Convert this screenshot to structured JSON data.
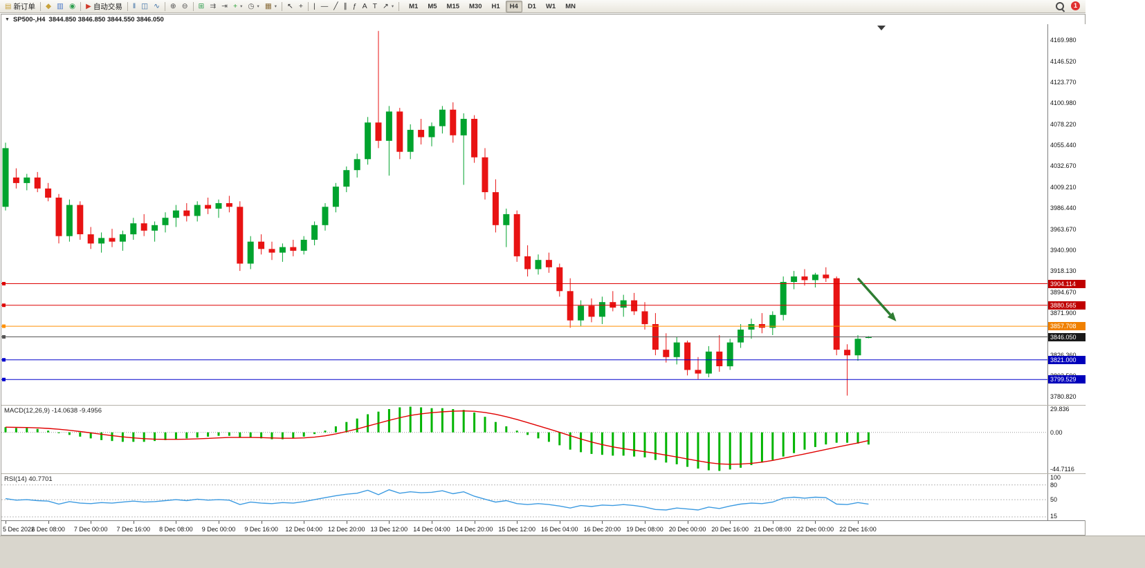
{
  "colors": {
    "up": "#00a32e",
    "down": "#e81313",
    "macd_histogram": "#00b400",
    "macd_signal": "#e00000",
    "rsi_line": "#3b9ae1",
    "background": "#ffffff",
    "axis_text": "#111111",
    "arrow_annotation": "#2e7d32"
  },
  "toolbar": {
    "items": [
      {
        "name": "new-order-button",
        "label": "新订单",
        "glyph": "▤",
        "glyph_color": "#c8a23a"
      },
      {
        "name": "separator"
      },
      {
        "name": "alerts-icon",
        "glyph": "◆",
        "glyph_color": "#c8a23a"
      },
      {
        "name": "market-watch-icon",
        "glyph": "▥",
        "glyph_color": "#4a78c8"
      },
      {
        "name": "community-icon",
        "glyph": "◉",
        "glyph_color": "#2e9e4f"
      },
      {
        "name": "separator"
      },
      {
        "name": "autotrading-button",
        "label": "自动交易",
        "glyph": "▶",
        "glyph_color": "#d03a2a"
      },
      {
        "name": "separator"
      },
      {
        "name": "bar-chart-icon",
        "glyph": "‖",
        "glyph_color": "#3a6ea5"
      },
      {
        "name": "candlestick-chart-icon",
        "glyph": "◫",
        "glyph_color": "#3a6ea5"
      },
      {
        "name": "line-chart-icon",
        "glyph": "∿",
        "glyph_color": "#3a6ea5"
      },
      {
        "name": "separator"
      },
      {
        "name": "zoom-in-icon",
        "glyph": "⊕",
        "glyph_color": "#555555"
      },
      {
        "name": "zoom-out-icon",
        "glyph": "⊖",
        "glyph_color": "#555555"
      },
      {
        "name": "separator"
      },
      {
        "name": "tile-windows-icon",
        "glyph": "⊞",
        "glyph_color": "#2e9e4f"
      },
      {
        "name": "auto-scroll-icon",
        "glyph": "⇉",
        "glyph_color": "#555555"
      },
      {
        "name": "chart-shift-icon",
        "glyph": "⇥",
        "glyph_color": "#555555"
      },
      {
        "name": "indicators-add-icon",
        "glyph": "+",
        "glyph_color": "#1f9e2e",
        "dropdown": true
      },
      {
        "name": "periods-icon",
        "glyph": "◷",
        "glyph_color": "#555555",
        "dropdown": true
      },
      {
        "name": "templates-icon",
        "glyph": "▦",
        "glyph_color": "#8a6d3b",
        "dropdown": true
      },
      {
        "name": "separator"
      },
      {
        "name": "cursor-icon",
        "glyph": "↖",
        "glyph_color": "#333333"
      },
      {
        "name": "crosshair-icon",
        "glyph": "+",
        "glyph_color": "#333333"
      },
      {
        "name": "separator"
      },
      {
        "name": "vertical-line-icon",
        "glyph": "|",
        "glyph_color": "#333333"
      },
      {
        "name": "horizontal-line-icon",
        "glyph": "—",
        "glyph_color": "#333333"
      },
      {
        "name": "trendline-icon",
        "glyph": "╱",
        "glyph_color": "#333333"
      },
      {
        "name": "channel-icon",
        "glyph": "∥",
        "glyph_color": "#333333"
      },
      {
        "name": "fibonacci-icon",
        "glyph": "ƒ",
        "glyph_color": "#333333"
      },
      {
        "name": "text-icon",
        "glyph": "A",
        "glyph_color": "#333333"
      },
      {
        "name": "text-label-icon",
        "glyph": "T",
        "glyph_color": "#333333"
      },
      {
        "name": "arrows-tool-icon",
        "glyph": "↗",
        "glyph_color": "#333333",
        "dropdown": true
      },
      {
        "name": "separator"
      }
    ],
    "timeframes": [
      {
        "label": "M1"
      },
      {
        "label": "M5"
      },
      {
        "label": "M15"
      },
      {
        "label": "M30"
      },
      {
        "label": "H1"
      },
      {
        "label": "H4",
        "active": true
      },
      {
        "label": "D1"
      },
      {
        "label": "W1"
      },
      {
        "label": "MN"
      }
    ],
    "right": {
      "badge": "1"
    }
  },
  "chart": {
    "menu_icon": "▼",
    "symbol": "SP500-,H4",
    "ohlc": "3844.850 3846.850 3844.550 3846.050"
  },
  "chart_data": {
    "type": "candlestick",
    "title": "SP500-,H4",
    "x_labels": [
      "5 Dec 2022",
      "6 Dec 08:00",
      "7 Dec 00:00",
      "7 Dec 16:00",
      "8 Dec 08:00",
      "9 Dec 00:00",
      "9 Dec 16:00",
      "12 Dec 04:00",
      "12 Dec 20:00",
      "13 Dec 12:00",
      "14 Dec 04:00",
      "14 Dec 20:00",
      "15 Dec 12:00",
      "16 Dec 04:00",
      "16 Dec 20:00",
      "19 Dec 08:00",
      "20 Dec 00:00",
      "20 Dec 16:00",
      "21 Dec 08:00",
      "22 Dec 00:00",
      "22 Dec 16:00"
    ],
    "bars_per_label": 4,
    "price_axis": {
      "min": 3771.8,
      "max": 4187.3,
      "ticks": [
        4169.98,
        4146.52,
        4123.77,
        4100.98,
        4078.22,
        4055.44,
        4032.67,
        4009.21,
        3986.44,
        3963.67,
        3940.9,
        3918.13,
        3894.67,
        3871.9,
        3826.36,
        3803.59,
        3780.82
      ]
    },
    "candles": [
      [
        3988,
        4058,
        3984,
        4052
      ],
      [
        4020,
        4030,
        4008,
        4014
      ],
      [
        4014,
        4024,
        4006,
        4020
      ],
      [
        4020,
        4026,
        4004,
        4008
      ],
      [
        4008,
        4014,
        3994,
        3998
      ],
      [
        3998,
        4002,
        3948,
        3956
      ],
      [
        3956,
        3996,
        3950,
        3990
      ],
      [
        3990,
        3994,
        3952,
        3958
      ],
      [
        3958,
        3966,
        3942,
        3948
      ],
      [
        3948,
        3960,
        3938,
        3954
      ],
      [
        3954,
        3964,
        3944,
        3950
      ],
      [
        3950,
        3962,
        3940,
        3958
      ],
      [
        3958,
        3976,
        3952,
        3970
      ],
      [
        3970,
        3980,
        3956,
        3962
      ],
      [
        3962,
        3972,
        3950,
        3968
      ],
      [
        3968,
        3982,
        3960,
        3976
      ],
      [
        3976,
        3990,
        3966,
        3984
      ],
      [
        3984,
        3992,
        3972,
        3978
      ],
      [
        3978,
        3994,
        3972,
        3990
      ],
      [
        3990,
        3998,
        3980,
        3986
      ],
      [
        3986,
        3996,
        3976,
        3992
      ],
      [
        3992,
        4000,
        3982,
        3988
      ],
      [
        3988,
        3994,
        3918,
        3926
      ],
      [
        3926,
        3956,
        3920,
        3950
      ],
      [
        3950,
        3958,
        3936,
        3942
      ],
      [
        3942,
        3950,
        3930,
        3938
      ],
      [
        3938,
        3948,
        3928,
        3944
      ],
      [
        3944,
        3952,
        3934,
        3940
      ],
      [
        3940,
        3956,
        3936,
        3952
      ],
      [
        3952,
        3972,
        3946,
        3968
      ],
      [
        3968,
        3992,
        3962,
        3988
      ],
      [
        3988,
        4014,
        3982,
        4010
      ],
      [
        4010,
        4032,
        4004,
        4028
      ],
      [
        4028,
        4046,
        4020,
        4040
      ],
      [
        4040,
        4086,
        4034,
        4080
      ],
      [
        4080,
        4180,
        4052,
        4060
      ],
      [
        4060,
        4098,
        4022,
        4092
      ],
      [
        4092,
        4096,
        4040,
        4048
      ],
      [
        4048,
        4078,
        4040,
        4072
      ],
      [
        4072,
        4084,
        4056,
        4064
      ],
      [
        4064,
        4080,
        4054,
        4076
      ],
      [
        4076,
        4098,
        4068,
        4094
      ],
      [
        4094,
        4102,
        4058,
        4066
      ],
      [
        4066,
        4090,
        4012,
        4084
      ],
      [
        4084,
        4088,
        4036,
        4042
      ],
      [
        4042,
        4052,
        3996,
        4004
      ],
      [
        4004,
        4018,
        3960,
        3968
      ],
      [
        3968,
        3986,
        3944,
        3980
      ],
      [
        3980,
        3984,
        3928,
        3934
      ],
      [
        3934,
        3946,
        3912,
        3920
      ],
      [
        3920,
        3936,
        3914,
        3930
      ],
      [
        3930,
        3938,
        3916,
        3922
      ],
      [
        3922,
        3926,
        3890,
        3896
      ],
      [
        3896,
        3910,
        3856,
        3864
      ],
      [
        3864,
        3886,
        3858,
        3880
      ],
      [
        3880,
        3888,
        3862,
        3868
      ],
      [
        3868,
        3890,
        3860,
        3884
      ],
      [
        3884,
        3896,
        3874,
        3878
      ],
      [
        3878,
        3892,
        3868,
        3886
      ],
      [
        3886,
        3894,
        3870,
        3874
      ],
      [
        3874,
        3884,
        3854,
        3860
      ],
      [
        3860,
        3872,
        3826,
        3832
      ],
      [
        3832,
        3850,
        3818,
        3824
      ],
      [
        3824,
        3846,
        3816,
        3840
      ],
      [
        3840,
        3842,
        3804,
        3810
      ],
      [
        3810,
        3824,
        3800,
        3806
      ],
      [
        3806,
        3836,
        3802,
        3830
      ],
      [
        3830,
        3848,
        3808,
        3814
      ],
      [
        3814,
        3844,
        3810,
        3840
      ],
      [
        3840,
        3860,
        3834,
        3854
      ],
      [
        3854,
        3866,
        3844,
        3860
      ],
      [
        3860,
        3872,
        3850,
        3856
      ],
      [
        3856,
        3874,
        3848,
        3870
      ],
      [
        3870,
        3912,
        3864,
        3906
      ],
      [
        3906,
        3918,
        3898,
        3912
      ],
      [
        3912,
        3920,
        3902,
        3908
      ],
      [
        3908,
        3916,
        3900,
        3914
      ],
      [
        3914,
        3922,
        3906,
        3910
      ],
      [
        3910,
        3912,
        3826,
        3832
      ],
      [
        3832,
        3838,
        3782,
        3826
      ],
      [
        3826,
        3848,
        3820,
        3844
      ],
      [
        3844.85,
        3846.85,
        3844.55,
        3846.05
      ]
    ],
    "levels": [
      {
        "price": 3904.114,
        "label": "3904.114",
        "color": "#dd0000",
        "tag": "#c00000"
      },
      {
        "price": 3880.565,
        "label": "3880.565",
        "color": "#dd0000",
        "tag": "#c00000"
      },
      {
        "price": 3857.708,
        "label": "3857.708",
        "color": "#ff8f00",
        "tag": "#f08000"
      },
      {
        "price": 3846.05,
        "label": "3846.050",
        "color": "#555555",
        "tag": "#1a1a1a",
        "current": true
      },
      {
        "price": 3821.0,
        "label": "3821.000",
        "color": "#0000cc",
        "tag": "#0000bb"
      },
      {
        "price": 3799.529,
        "label": "3799.529",
        "color": "#0000cc",
        "tag": "#0000bb"
      }
    ],
    "annotations": [
      {
        "type": "arrow",
        "from": {
          "bar": 80,
          "price": 3910
        },
        "to": {
          "bar": 83.6,
          "price": 3863
        },
        "color": "#2e7d32"
      }
    ],
    "macd": {
      "label_text": "MACD(12,26,9) -14.0638 -9.4956",
      "name": "MACD(12,26,9)",
      "value_main": -14.0638,
      "value_signal": -9.4956,
      "range": [
        -47.5,
        31
      ],
      "axis": [
        {
          "value": 29.836,
          "label": "29.836"
        },
        {
          "value": 0,
          "label": "0.00"
        },
        {
          "value": -44.7116,
          "label": "-44.7116"
        }
      ],
      "histogram": [
        6,
        5,
        5,
        4,
        2,
        -1,
        -3,
        -5,
        -7,
        -9,
        -10,
        -11,
        -11,
        -11,
        -10,
        -9,
        -8,
        -7,
        -6,
        -5,
        -4,
        -4,
        -6,
        -6,
        -7,
        -8,
        -8,
        -7,
        -5,
        -2,
        2,
        7,
        12,
        16,
        21,
        24,
        27,
        29,
        29.8,
        29,
        28,
        28,
        27,
        26,
        23,
        18,
        12,
        7,
        2,
        -3,
        -7,
        -11,
        -15,
        -20,
        -23,
        -25,
        -26,
        -27,
        -27,
        -28,
        -29,
        -32,
        -35,
        -37,
        -40,
        -42,
        -44,
        -44.7,
        -43,
        -41,
        -38,
        -35,
        -32,
        -28,
        -24,
        -20,
        -17,
        -14,
        -12,
        -12,
        -13,
        -14.06
      ],
      "signal": [
        6,
        5.8,
        5.6,
        5.2,
        4.6,
        3.6,
        2.4,
        1,
        -0.6,
        -2.2,
        -3.8,
        -5.2,
        -6.4,
        -7.3,
        -7.9,
        -8.1,
        -8.1,
        -7.9,
        -7.5,
        -7,
        -6.4,
        -5.9,
        -5.9,
        -5.9,
        -6.1,
        -6.5,
        -6.8,
        -6.8,
        -6.4,
        -5.5,
        -4,
        -1.8,
        1,
        3.9,
        7.3,
        10.6,
        13.9,
        17,
        19.6,
        21.5,
        22.8,
        23.8,
        24.5,
        24.8,
        24.4,
        23.1,
        20.9,
        18.1,
        14.9,
        11.3,
        7.6,
        3.9,
        0.1,
        -3.9,
        -7.7,
        -11.2,
        -14.2,
        -16.8,
        -18.9,
        -20.7,
        -22.4,
        -24.3,
        -26.4,
        -28.5,
        -30.8,
        -33,
        -35.2,
        -36.5,
        -37,
        -36.8,
        -36,
        -34.5,
        -32.5,
        -30,
        -27.5,
        -25,
        -22.4,
        -19.8,
        -17.2,
        -14.7,
        -12.3,
        -9.5
      ]
    },
    "rsi": {
      "label_text": "RSI(14) 40.7701",
      "name": "RSI(14)",
      "value": 40.7701,
      "range": [
        8,
        102
      ],
      "levels": [
        80,
        50,
        15
      ],
      "axis": [
        {
          "value": 100,
          "label": "100"
        },
        {
          "value": 80,
          "label": "80"
        },
        {
          "value": 50,
          "label": "50"
        },
        {
          "value": 15,
          "label": "15"
        }
      ],
      "values": [
        52,
        49,
        50,
        48,
        47,
        41,
        46,
        43,
        42,
        44,
        43,
        45,
        47,
        45,
        46,
        48,
        50,
        48,
        51,
        49,
        50,
        49,
        40,
        45,
        43,
        42,
        44,
        43,
        46,
        50,
        54,
        58,
        61,
        63,
        69,
        60,
        70,
        63,
        66,
        64,
        65,
        68,
        62,
        66,
        57,
        51,
        45,
        48,
        42,
        40,
        42,
        40,
        37,
        33,
        38,
        36,
        39,
        38,
        40,
        38,
        35,
        30,
        29,
        33,
        31,
        29,
        35,
        32,
        37,
        41,
        43,
        42,
        45,
        53,
        55,
        53,
        55,
        54,
        41,
        40,
        44,
        40.77
      ]
    }
  }
}
